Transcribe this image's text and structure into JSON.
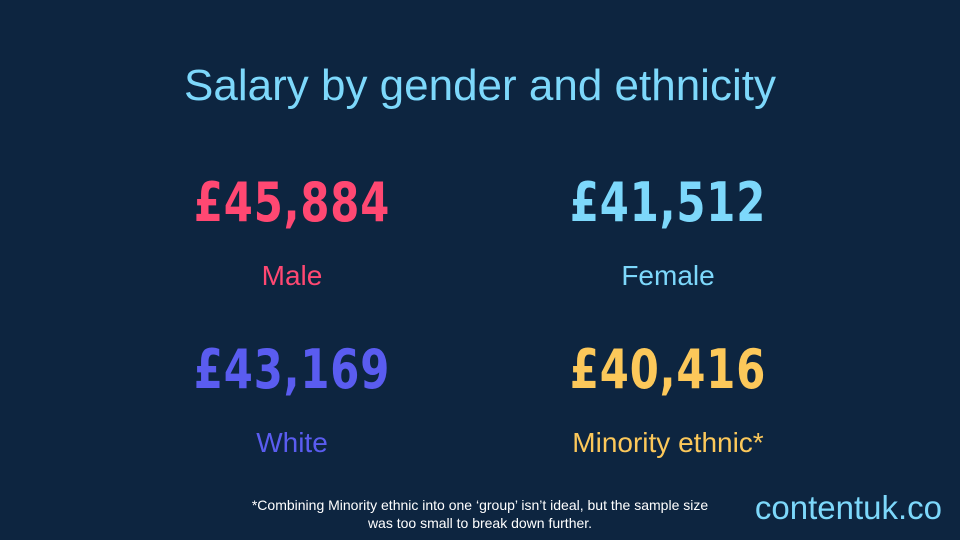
{
  "title": "Salary by gender and ethnicity",
  "stats": {
    "male": {
      "value": "£45,884",
      "label": "Male",
      "color": "#ff4872"
    },
    "female": {
      "value": "£41,512",
      "label": "Female",
      "color": "#7dd8fb"
    },
    "white": {
      "value": "£43,169",
      "label": "White",
      "color": "#5a5cf0"
    },
    "minority": {
      "value": "£40,416",
      "label": "Minority ethnic*",
      "color": "#fcc85a"
    }
  },
  "footnote": {
    "line1": "*Combining Minority ethnic into one ‘group’ isn’t ideal, but the sample size",
    "line2": "was too small to break down further."
  },
  "brand": "contentuk.co",
  "colors": {
    "background": "#0d2540",
    "title": "#7dd8fb"
  }
}
